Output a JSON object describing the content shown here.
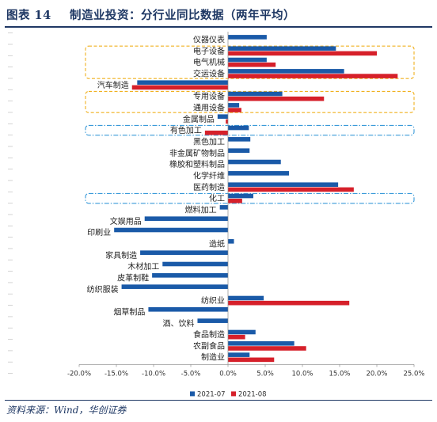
{
  "header": {
    "tag": "图表 14",
    "title": "制造业投资：分行业同比数据（两年平均）"
  },
  "footer": {
    "source": "资料来源：Wind，华创证券"
  },
  "colors": {
    "series1": "#1a5aa8",
    "series2": "#d6202a",
    "highlight_orange": "#f0b01e",
    "highlight_blue": "#3a9ad9",
    "title": "#1f3864"
  },
  "chart_data": {
    "type": "bar",
    "orientation": "horizontal",
    "categories": [
      "仪器仪表",
      "电子设备",
      "电气机械",
      "交运设备",
      "汽车制造",
      "专用设备",
      "通用设备",
      "金属制品",
      "有色加工",
      "黑色加工",
      "非金属矿物制品",
      "橡胶和塑料制品",
      "化学纤维",
      "医药制造",
      "化工",
      "燃料加工",
      "文娱用品",
      "印刷业",
      "造纸",
      "家具制造",
      "木材加工",
      "皮革制鞋",
      "纺织服装",
      "纺织业",
      "烟草制品",
      "酒、饮料",
      "食品制造",
      "农副食品",
      "制造业"
    ],
    "series": [
      {
        "name": "2021-07",
        "values": [
          5.2,
          14.5,
          5.2,
          15.6,
          -12.2,
          7.3,
          1.5,
          -1.4,
          2.8,
          3.0,
          2.9,
          7.1,
          8.2,
          14.8,
          3.4,
          -1.1,
          -11.2,
          -15.3,
          0.8,
          -11.8,
          -8.8,
          -10.2,
          -14.3,
          4.8,
          -10.7,
          -4.1,
          3.7,
          8.9,
          2.9
        ],
        "color_key": "series1"
      },
      {
        "name": "2021-08",
        "values": [
          null,
          20.0,
          6.4,
          22.8,
          -12.9,
          12.9,
          1.8,
          -0.3,
          -3.1,
          null,
          null,
          null,
          null,
          16.9,
          1.9,
          null,
          null,
          null,
          null,
          null,
          null,
          null,
          null,
          16.3,
          null,
          null,
          2.3,
          10.5,
          6.2
        ],
        "color_key": "series2"
      }
    ],
    "xlim": [
      -20.0,
      25.0
    ],
    "xticks": [
      "-20.0%",
      "-15.0%",
      "-10.0%",
      "-5.0%",
      "0.0%",
      "5.0%",
      "10.0%",
      "15.0%",
      "20.0%",
      "25.0%"
    ],
    "highlight_groups": [
      {
        "style": "dashed",
        "color_key": "highlight_orange",
        "categories": [
          "电子设备",
          "电气机械",
          "交运设备"
        ]
      },
      {
        "style": "dashed",
        "color_key": "highlight_orange",
        "categories": [
          "专用设备",
          "通用设备"
        ]
      },
      {
        "style": "dashdot",
        "color_key": "highlight_blue",
        "categories": [
          "有色加工"
        ]
      },
      {
        "style": "dashdot",
        "color_key": "highlight_blue",
        "categories": [
          "化工"
        ]
      }
    ],
    "grid": false,
    "legend_position": "bottom-left"
  }
}
